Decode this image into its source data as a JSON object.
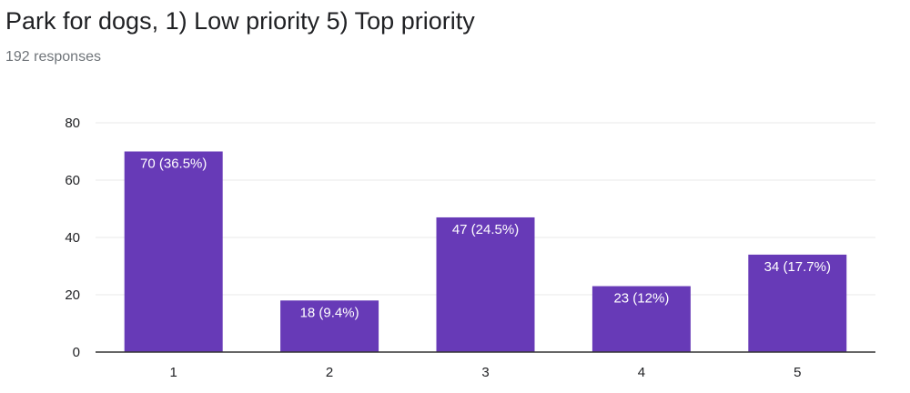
{
  "header": {
    "title": "Park for dogs, 1) Low priority 5) Top priority",
    "responses": "192 responses"
  },
  "chart_data": {
    "type": "bar",
    "title": "Park for dogs, 1) Low priority 5) Top priority",
    "categories": [
      "1",
      "2",
      "3",
      "4",
      "5"
    ],
    "values": [
      70,
      18,
      47,
      23,
      34
    ],
    "data_labels": [
      "70 (36.5%)",
      "18 (9.4%)",
      "47 (24.5%)",
      "23 (12%)",
      "34 (17.7%)"
    ],
    "ylim": [
      0,
      80
    ],
    "yticks": [
      0,
      20,
      40,
      60,
      80
    ],
    "grid": true,
    "legend": "none",
    "bar_color": "#673ab7",
    "grid_color": "#e8e8e8",
    "axis_color": "#333333"
  }
}
